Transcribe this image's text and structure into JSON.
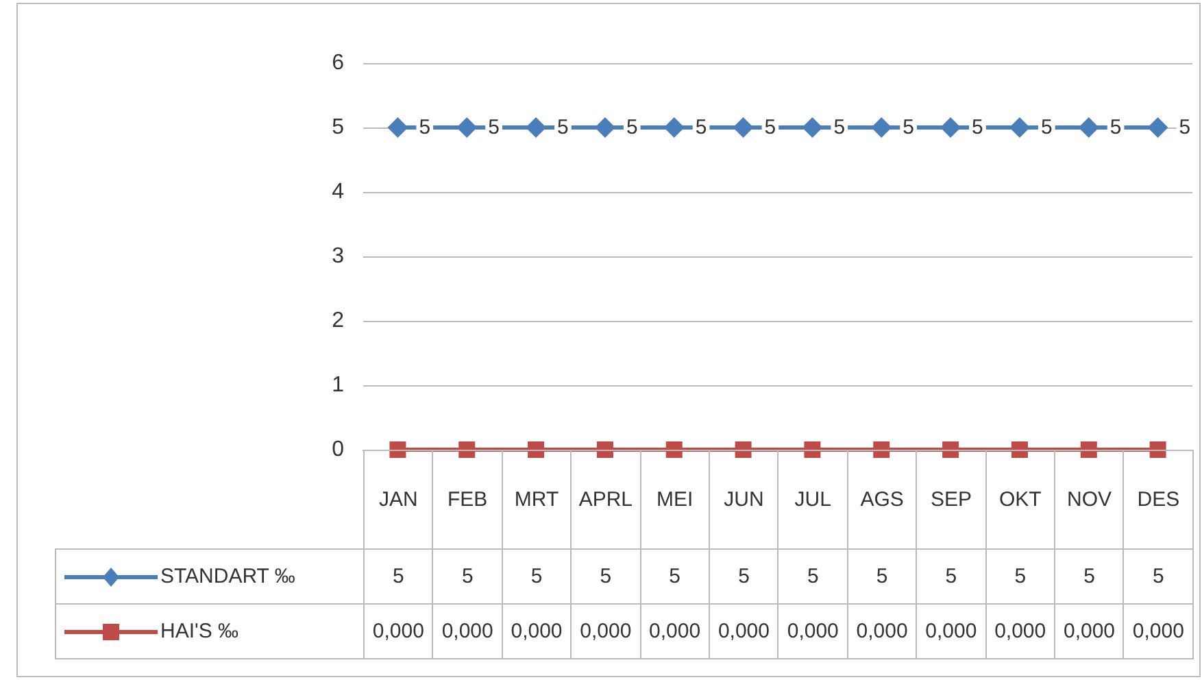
{
  "chart_data": {
    "type": "line",
    "categories": [
      "JAN",
      "FEB",
      "MRT",
      "APRL",
      "MEI",
      "JUN",
      "JUL",
      "AGS",
      "SEP",
      "OKT",
      "NOV",
      "DES"
    ],
    "series": [
      {
        "name": "STANDART ‰",
        "color": "#4a7ebb",
        "marker": "diamond",
        "data_labels": true,
        "values": [
          5,
          5,
          5,
          5,
          5,
          5,
          5,
          5,
          5,
          5,
          5,
          5
        ],
        "value_labels": [
          "5",
          "5",
          "5",
          "5",
          "5",
          "5",
          "5",
          "5",
          "5",
          "5",
          "5",
          "5"
        ]
      },
      {
        "name": "HAI'S ‰",
        "color": "#be4b48",
        "marker": "square",
        "values": [
          0,
          0,
          0,
          0,
          0,
          0,
          0,
          0,
          0,
          0,
          0,
          0
        ],
        "value_labels": [
          "0,000",
          "0,000",
          "0,000",
          "0,000",
          "0,000",
          "0,000",
          "0,000",
          "0,000",
          "0,000",
          "0,000",
          "0,000",
          "0,000"
        ]
      }
    ],
    "ylim": [
      0,
      6
    ],
    "yticks": [
      0,
      1,
      2,
      3,
      4,
      5,
      6
    ],
    "grid": "y",
    "legend": "bottom"
  }
}
